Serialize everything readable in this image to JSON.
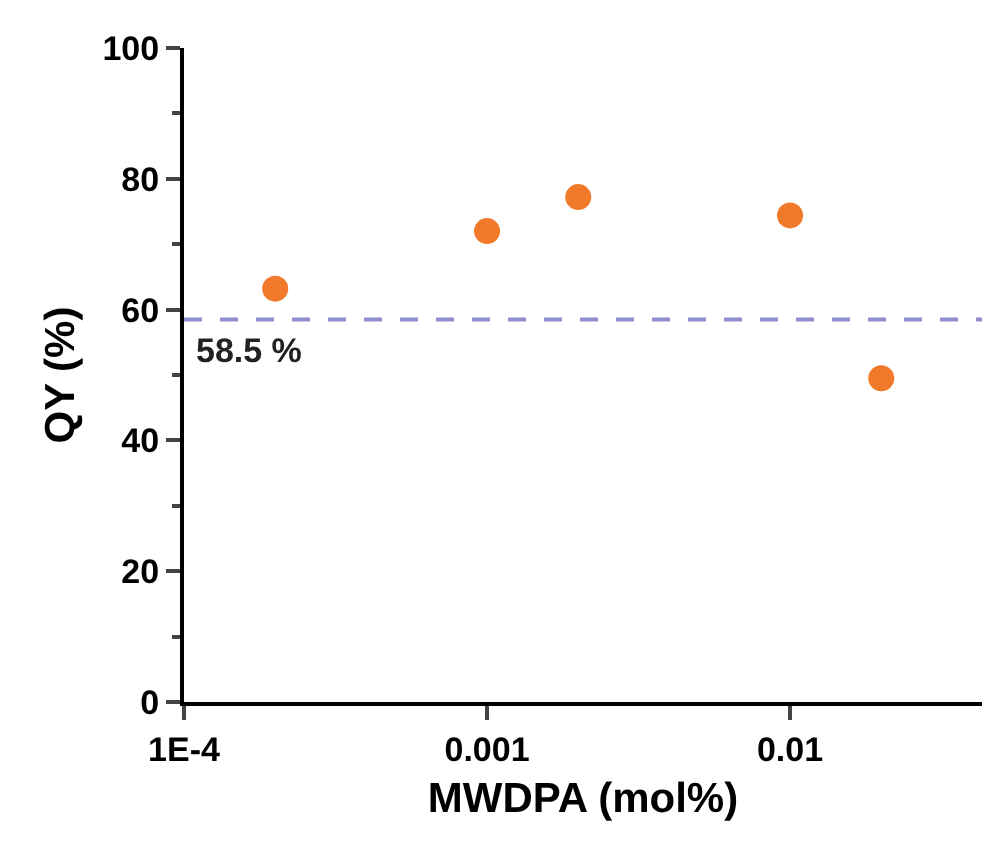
{
  "chart_data": {
    "type": "scatter",
    "xlabel": "MWDPA (mol%)",
    "ylabel": "QY (%)",
    "x": [
      0.0002,
      0.001,
      0.002,
      0.01,
      0.02
    ],
    "series": [
      {
        "color": "#f07a2a",
        "values": [
          63.2,
          72.0,
          77.2,
          74.4,
          49.5
        ]
      }
    ],
    "log": "x",
    "xlim": [
      0.0001,
      0.043
    ],
    "xticks": [
      {
        "value": 0.0001,
        "label": "1E-4"
      },
      0.001,
      0.01
    ],
    "ylim": [
      0,
      100
    ],
    "yticks": [
      0,
      20,
      40,
      60,
      80,
      100
    ],
    "ref_lines": [
      {
        "axis": "y",
        "value": 58.5,
        "label": "58.5 %",
        "color": "#8f8fd0",
        "line_style": "dashed"
      }
    ],
    "marker": "circle",
    "grid": false
  }
}
